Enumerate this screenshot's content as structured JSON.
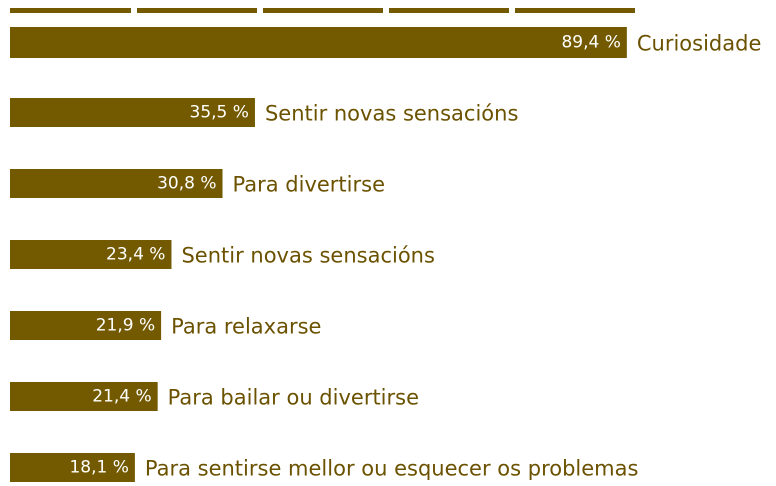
{
  "chart_data": {
    "type": "bar",
    "orientation": "horizontal",
    "categories": [
      "Curiosidade",
      "Sentir novas sensacións",
      "Para divertirse",
      "Sentir novas sensacións",
      "Para relaxarse",
      "Para bailar ou divertirse",
      "Para sentirse mellor ou esquecer os problemas"
    ],
    "values": [
      89.4,
      35.5,
      30.8,
      23.4,
      21.9,
      21.4,
      18.1
    ],
    "value_labels": [
      "89,4 %",
      "35,5 %",
      "30,8 %",
      "23,4 %",
      "21,9 %",
      "21,4 %",
      "18,1 %"
    ],
    "color": "#735a00",
    "xlim": [
      0,
      100
    ]
  }
}
